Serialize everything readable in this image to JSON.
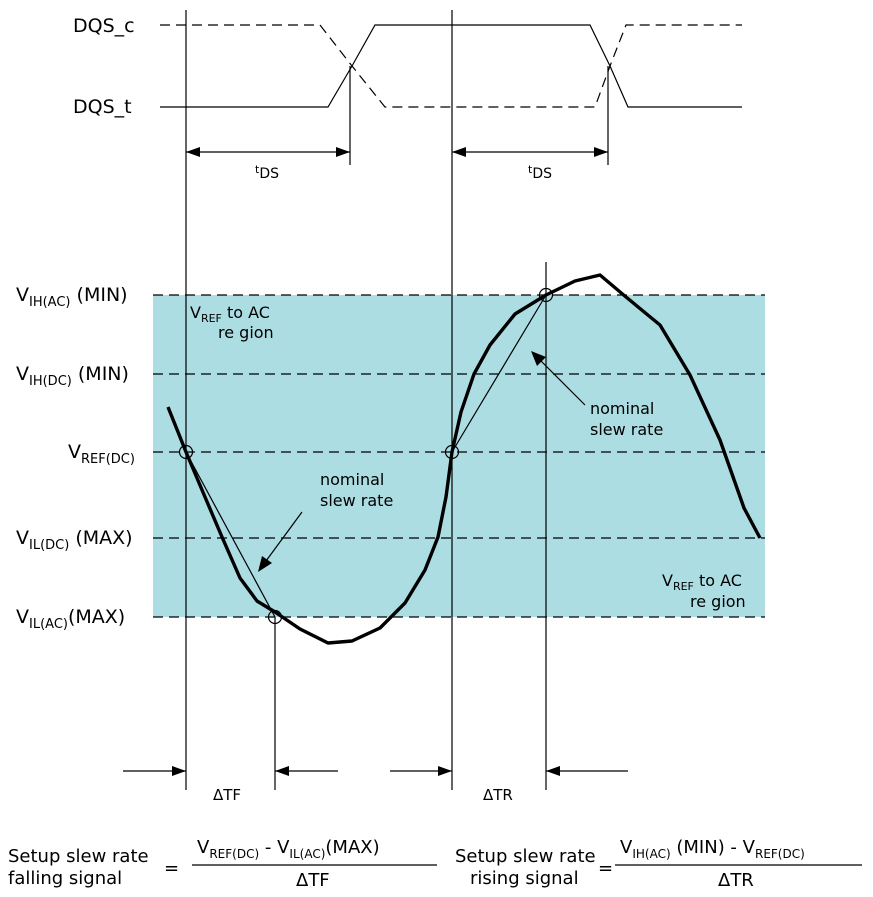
{
  "colors": {
    "ac_region": "#acdde3",
    "line": "#000000",
    "background": "#ffffff"
  },
  "signals": {
    "dqs_c": {
      "main": "DQS",
      "suffix": "_c"
    },
    "dqs_t": {
      "main": "DQS",
      "suffix": "_t"
    },
    "tds_left": {
      "t": "t",
      "sub": "DS"
    },
    "tds_right": {
      "t": "t",
      "sub": "DS"
    }
  },
  "levels": {
    "vih_ac": {
      "v": "V",
      "sub": "IH(AC)",
      "suffix": " (MIN)"
    },
    "vih_dc": {
      "v": "V",
      "sub": "IH(DC)",
      "suffix": " (MIN)"
    },
    "vref_dc": {
      "v": "V",
      "sub": "REF(DC)",
      "suffix": ""
    },
    "vil_dc": {
      "v": "V",
      "sub": "IL(DC)",
      "suffix": " (MAX)"
    },
    "vil_ac": {
      "v": "V",
      "sub": "IL(AC)",
      "suffix": "(MAX)"
    }
  },
  "regions": {
    "top": {
      "v": "V",
      "sub": "REF",
      "rest": " to AC",
      "line2": "re gion"
    },
    "bottom": {
      "v": "V",
      "sub": "REF",
      "rest": " to AC",
      "line2": "re gion"
    }
  },
  "annotations": {
    "nominal_left": {
      "line1": "nominal",
      "line2": "slew rate"
    },
    "nominal_right": {
      "line1": "nominal",
      "line2": "slew rate"
    }
  },
  "deltas": {
    "tf": "ΔTF",
    "tr": "ΔTR"
  },
  "equations": {
    "falling": {
      "label1": "Setup slew rate",
      "label2": "falling signal",
      "equals": "=",
      "num_v1": "V",
      "num_sub1": "REF(DC)",
      "num_mid": " - ",
      "num_v2": "V",
      "num_sub2": "IL(AC)",
      "num_end": "(MAX)",
      "den": "ΔTF"
    },
    "rising": {
      "label1": "Setup slew rate",
      "label2": "rising signal",
      "equals": "=",
      "num_v1": "V",
      "num_sub1": "IH(AC)",
      "num_mid": " (MIN) - ",
      "num_v2": "V",
      "num_sub2": "REF(DC)",
      "num_end": "",
      "den": "ΔTR"
    }
  }
}
